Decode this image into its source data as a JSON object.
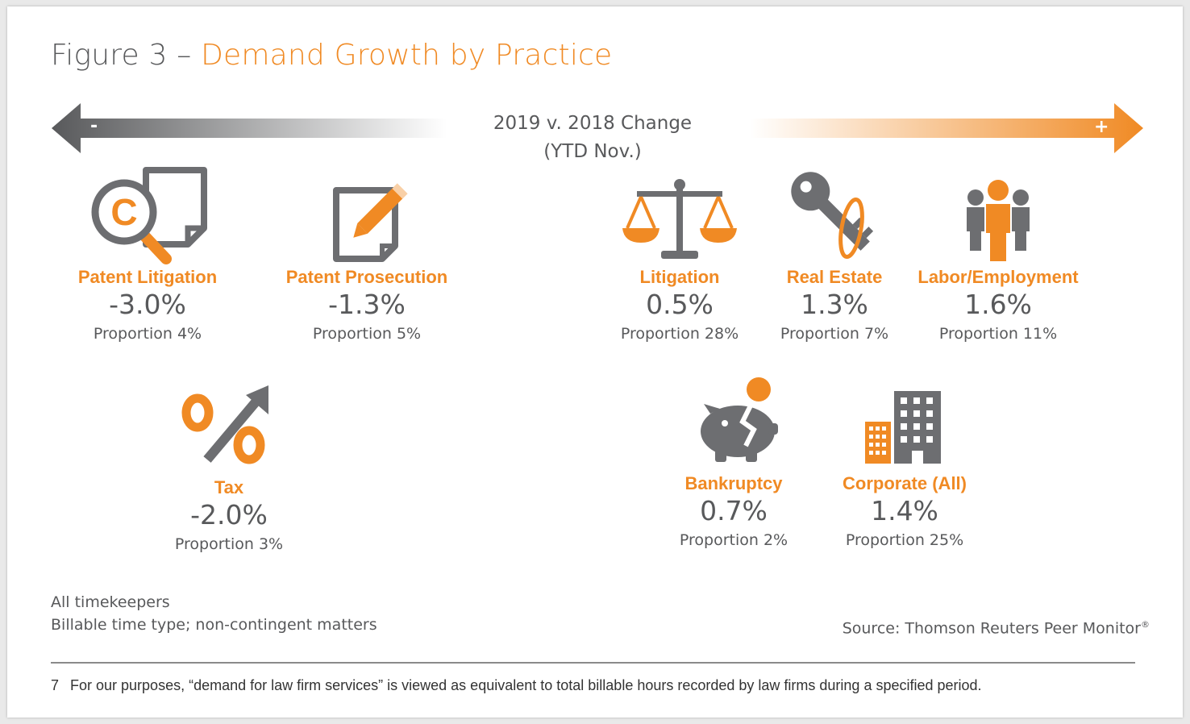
{
  "title": {
    "prefix": "Figure 3 – ",
    "accent": "Demand Growth by Practice"
  },
  "axis": {
    "line1": "2019 v. 2018 Change",
    "line2": "(YTD Nov.)",
    "negative_sign": "-",
    "positive_sign": "+"
  },
  "colors": {
    "accent": "#f08a24",
    "gray": "#58595b",
    "icon_gray": "#6d6e71"
  },
  "chart_data": {
    "type": "table",
    "title": "Figure 3 – Demand Growth by Practice",
    "subtitle": "2019 v. 2018 Change (YTD Nov.)",
    "practices": [
      {
        "name": "Patent Litigation",
        "change": "-3.0%",
        "change_value": -3.0,
        "proportion": "Proportion 4%",
        "proportion_value": 4,
        "icon": "copyright-search-icon"
      },
      {
        "name": "Patent Prosecution",
        "change": "-1.3%",
        "change_value": -1.3,
        "proportion": "Proportion 5%",
        "proportion_value": 5,
        "icon": "document-pencil-icon"
      },
      {
        "name": "Tax",
        "change": "-2.0%",
        "change_value": -2.0,
        "proportion": "Proportion 3%",
        "proportion_value": 3,
        "icon": "percent-arrow-icon"
      },
      {
        "name": "Litigation",
        "change": "0.5%",
        "change_value": 0.5,
        "proportion": "Proportion 28%",
        "proportion_value": 28,
        "icon": "scales-icon"
      },
      {
        "name": "Real Estate",
        "change": "1.3%",
        "change_value": 1.3,
        "proportion": "Proportion 7%",
        "proportion_value": 7,
        "icon": "key-icon"
      },
      {
        "name": "Labor/Employment",
        "change": "1.6%",
        "change_value": 1.6,
        "proportion": "Proportion 11%",
        "proportion_value": 11,
        "icon": "people-icon"
      },
      {
        "name": "Bankruptcy",
        "change": "0.7%",
        "change_value": 0.7,
        "proportion": "Proportion 2%",
        "proportion_value": 2,
        "icon": "broken-piggy-bank-icon"
      },
      {
        "name": "Corporate (All)",
        "change": "1.4%",
        "change_value": 1.4,
        "proportion": "Proportion 25%",
        "proportion_value": 25,
        "icon": "buildings-icon"
      }
    ]
  },
  "notes": {
    "line1": "All timekeepers",
    "line2": "Billable time type; non-contingent matters"
  },
  "source": {
    "text": "Source: Thomson Reuters Peer Monitor",
    "mark": "®"
  },
  "footnote": {
    "number": "7",
    "text": "For our purposes, “demand for law firm services” is viewed as equivalent to total billable hours recorded by law firms during a specified period."
  }
}
